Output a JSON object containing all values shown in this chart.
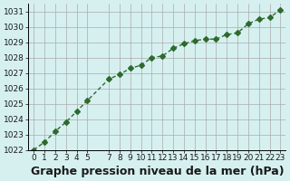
{
  "x": [
    0,
    1,
    2,
    3,
    4,
    5,
    7,
    8,
    9,
    10,
    11,
    12,
    13,
    14,
    15,
    16,
    17,
    18,
    19,
    20,
    21,
    22,
    23
  ],
  "y": [
    1022.0,
    1022.5,
    1023.2,
    1023.8,
    1024.5,
    1025.2,
    1026.6,
    1026.9,
    1027.3,
    1027.5,
    1028.0,
    1028.1,
    1028.6,
    1028.9,
    1029.1,
    1029.2,
    1029.2,
    1029.5,
    1029.6,
    1030.2,
    1030.5,
    1030.6,
    1031.1
  ],
  "line_color": "#2d6a2d",
  "marker": "D",
  "marker_size": 3,
  "bg_color": "#d6f0f0",
  "grid_color": "#aaaaaa",
  "title": "Graphe pression niveau de la mer (hPa)",
  "title_fontsize": 9,
  "title_bold": true,
  "xlim": [
    -0.5,
    23.5
  ],
  "ylim": [
    1022.0,
    1031.5
  ],
  "yticks": [
    1022,
    1023,
    1024,
    1025,
    1026,
    1027,
    1028,
    1029,
    1030,
    1031
  ],
  "xticks": [
    0,
    1,
    2,
    3,
    4,
    5,
    7,
    8,
    9,
    10,
    11,
    12,
    13,
    14,
    15,
    16,
    17,
    18,
    19,
    20,
    21,
    22,
    23
  ],
  "tick_fontsize": 6.5,
  "label_color": "#1a1a1a"
}
